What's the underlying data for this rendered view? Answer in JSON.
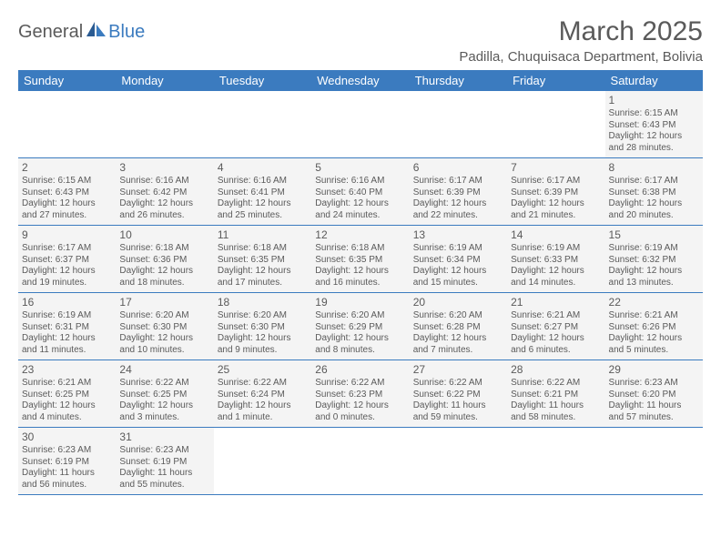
{
  "logo": {
    "part1": "General",
    "part2": "Blue"
  },
  "title": "March 2025",
  "location": "Padilla, Chuquisaca Department, Bolivia",
  "colors": {
    "header_bg": "#3b7bbf",
    "header_text": "#ffffff",
    "cell_bg": "#f4f4f4",
    "text": "#5a5a5a",
    "row_border": "#3b7bbf",
    "page_bg": "#ffffff"
  },
  "typography": {
    "title_fontsize": 30,
    "location_fontsize": 15,
    "dow_fontsize": 13,
    "daynum_fontsize": 12,
    "body_fontsize": 10
  },
  "daysOfWeek": [
    "Sunday",
    "Monday",
    "Tuesday",
    "Wednesday",
    "Thursday",
    "Friday",
    "Saturday"
  ],
  "weeks": [
    [
      {
        "empty": true
      },
      {
        "empty": true
      },
      {
        "empty": true
      },
      {
        "empty": true
      },
      {
        "empty": true
      },
      {
        "empty": true
      },
      {
        "n": "1",
        "sunrise": "Sunrise: 6:15 AM",
        "sunset": "Sunset: 6:43 PM",
        "day1": "Daylight: 12 hours",
        "day2": "and 28 minutes."
      }
    ],
    [
      {
        "n": "2",
        "sunrise": "Sunrise: 6:15 AM",
        "sunset": "Sunset: 6:43 PM",
        "day1": "Daylight: 12 hours",
        "day2": "and 27 minutes."
      },
      {
        "n": "3",
        "sunrise": "Sunrise: 6:16 AM",
        "sunset": "Sunset: 6:42 PM",
        "day1": "Daylight: 12 hours",
        "day2": "and 26 minutes."
      },
      {
        "n": "4",
        "sunrise": "Sunrise: 6:16 AM",
        "sunset": "Sunset: 6:41 PM",
        "day1": "Daylight: 12 hours",
        "day2": "and 25 minutes."
      },
      {
        "n": "5",
        "sunrise": "Sunrise: 6:16 AM",
        "sunset": "Sunset: 6:40 PM",
        "day1": "Daylight: 12 hours",
        "day2": "and 24 minutes."
      },
      {
        "n": "6",
        "sunrise": "Sunrise: 6:17 AM",
        "sunset": "Sunset: 6:39 PM",
        "day1": "Daylight: 12 hours",
        "day2": "and 22 minutes."
      },
      {
        "n": "7",
        "sunrise": "Sunrise: 6:17 AM",
        "sunset": "Sunset: 6:39 PM",
        "day1": "Daylight: 12 hours",
        "day2": "and 21 minutes."
      },
      {
        "n": "8",
        "sunrise": "Sunrise: 6:17 AM",
        "sunset": "Sunset: 6:38 PM",
        "day1": "Daylight: 12 hours",
        "day2": "and 20 minutes."
      }
    ],
    [
      {
        "n": "9",
        "sunrise": "Sunrise: 6:17 AM",
        "sunset": "Sunset: 6:37 PM",
        "day1": "Daylight: 12 hours",
        "day2": "and 19 minutes."
      },
      {
        "n": "10",
        "sunrise": "Sunrise: 6:18 AM",
        "sunset": "Sunset: 6:36 PM",
        "day1": "Daylight: 12 hours",
        "day2": "and 18 minutes."
      },
      {
        "n": "11",
        "sunrise": "Sunrise: 6:18 AM",
        "sunset": "Sunset: 6:35 PM",
        "day1": "Daylight: 12 hours",
        "day2": "and 17 minutes."
      },
      {
        "n": "12",
        "sunrise": "Sunrise: 6:18 AM",
        "sunset": "Sunset: 6:35 PM",
        "day1": "Daylight: 12 hours",
        "day2": "and 16 minutes."
      },
      {
        "n": "13",
        "sunrise": "Sunrise: 6:19 AM",
        "sunset": "Sunset: 6:34 PM",
        "day1": "Daylight: 12 hours",
        "day2": "and 15 minutes."
      },
      {
        "n": "14",
        "sunrise": "Sunrise: 6:19 AM",
        "sunset": "Sunset: 6:33 PM",
        "day1": "Daylight: 12 hours",
        "day2": "and 14 minutes."
      },
      {
        "n": "15",
        "sunrise": "Sunrise: 6:19 AM",
        "sunset": "Sunset: 6:32 PM",
        "day1": "Daylight: 12 hours",
        "day2": "and 13 minutes."
      }
    ],
    [
      {
        "n": "16",
        "sunrise": "Sunrise: 6:19 AM",
        "sunset": "Sunset: 6:31 PM",
        "day1": "Daylight: 12 hours",
        "day2": "and 11 minutes."
      },
      {
        "n": "17",
        "sunrise": "Sunrise: 6:20 AM",
        "sunset": "Sunset: 6:30 PM",
        "day1": "Daylight: 12 hours",
        "day2": "and 10 minutes."
      },
      {
        "n": "18",
        "sunrise": "Sunrise: 6:20 AM",
        "sunset": "Sunset: 6:30 PM",
        "day1": "Daylight: 12 hours",
        "day2": "and 9 minutes."
      },
      {
        "n": "19",
        "sunrise": "Sunrise: 6:20 AM",
        "sunset": "Sunset: 6:29 PM",
        "day1": "Daylight: 12 hours",
        "day2": "and 8 minutes."
      },
      {
        "n": "20",
        "sunrise": "Sunrise: 6:20 AM",
        "sunset": "Sunset: 6:28 PM",
        "day1": "Daylight: 12 hours",
        "day2": "and 7 minutes."
      },
      {
        "n": "21",
        "sunrise": "Sunrise: 6:21 AM",
        "sunset": "Sunset: 6:27 PM",
        "day1": "Daylight: 12 hours",
        "day2": "and 6 minutes."
      },
      {
        "n": "22",
        "sunrise": "Sunrise: 6:21 AM",
        "sunset": "Sunset: 6:26 PM",
        "day1": "Daylight: 12 hours",
        "day2": "and 5 minutes."
      }
    ],
    [
      {
        "n": "23",
        "sunrise": "Sunrise: 6:21 AM",
        "sunset": "Sunset: 6:25 PM",
        "day1": "Daylight: 12 hours",
        "day2": "and 4 minutes."
      },
      {
        "n": "24",
        "sunrise": "Sunrise: 6:22 AM",
        "sunset": "Sunset: 6:25 PM",
        "day1": "Daylight: 12 hours",
        "day2": "and 3 minutes."
      },
      {
        "n": "25",
        "sunrise": "Sunrise: 6:22 AM",
        "sunset": "Sunset: 6:24 PM",
        "day1": "Daylight: 12 hours",
        "day2": "and 1 minute."
      },
      {
        "n": "26",
        "sunrise": "Sunrise: 6:22 AM",
        "sunset": "Sunset: 6:23 PM",
        "day1": "Daylight: 12 hours",
        "day2": "and 0 minutes."
      },
      {
        "n": "27",
        "sunrise": "Sunrise: 6:22 AM",
        "sunset": "Sunset: 6:22 PM",
        "day1": "Daylight: 11 hours",
        "day2": "and 59 minutes."
      },
      {
        "n": "28",
        "sunrise": "Sunrise: 6:22 AM",
        "sunset": "Sunset: 6:21 PM",
        "day1": "Daylight: 11 hours",
        "day2": "and 58 minutes."
      },
      {
        "n": "29",
        "sunrise": "Sunrise: 6:23 AM",
        "sunset": "Sunset: 6:20 PM",
        "day1": "Daylight: 11 hours",
        "day2": "and 57 minutes."
      }
    ],
    [
      {
        "n": "30",
        "sunrise": "Sunrise: 6:23 AM",
        "sunset": "Sunset: 6:19 PM",
        "day1": "Daylight: 11 hours",
        "day2": "and 56 minutes."
      },
      {
        "n": "31",
        "sunrise": "Sunrise: 6:23 AM",
        "sunset": "Sunset: 6:19 PM",
        "day1": "Daylight: 11 hours",
        "day2": "and 55 minutes."
      },
      {
        "empty": true
      },
      {
        "empty": true
      },
      {
        "empty": true
      },
      {
        "empty": true
      },
      {
        "empty": true
      }
    ]
  ]
}
